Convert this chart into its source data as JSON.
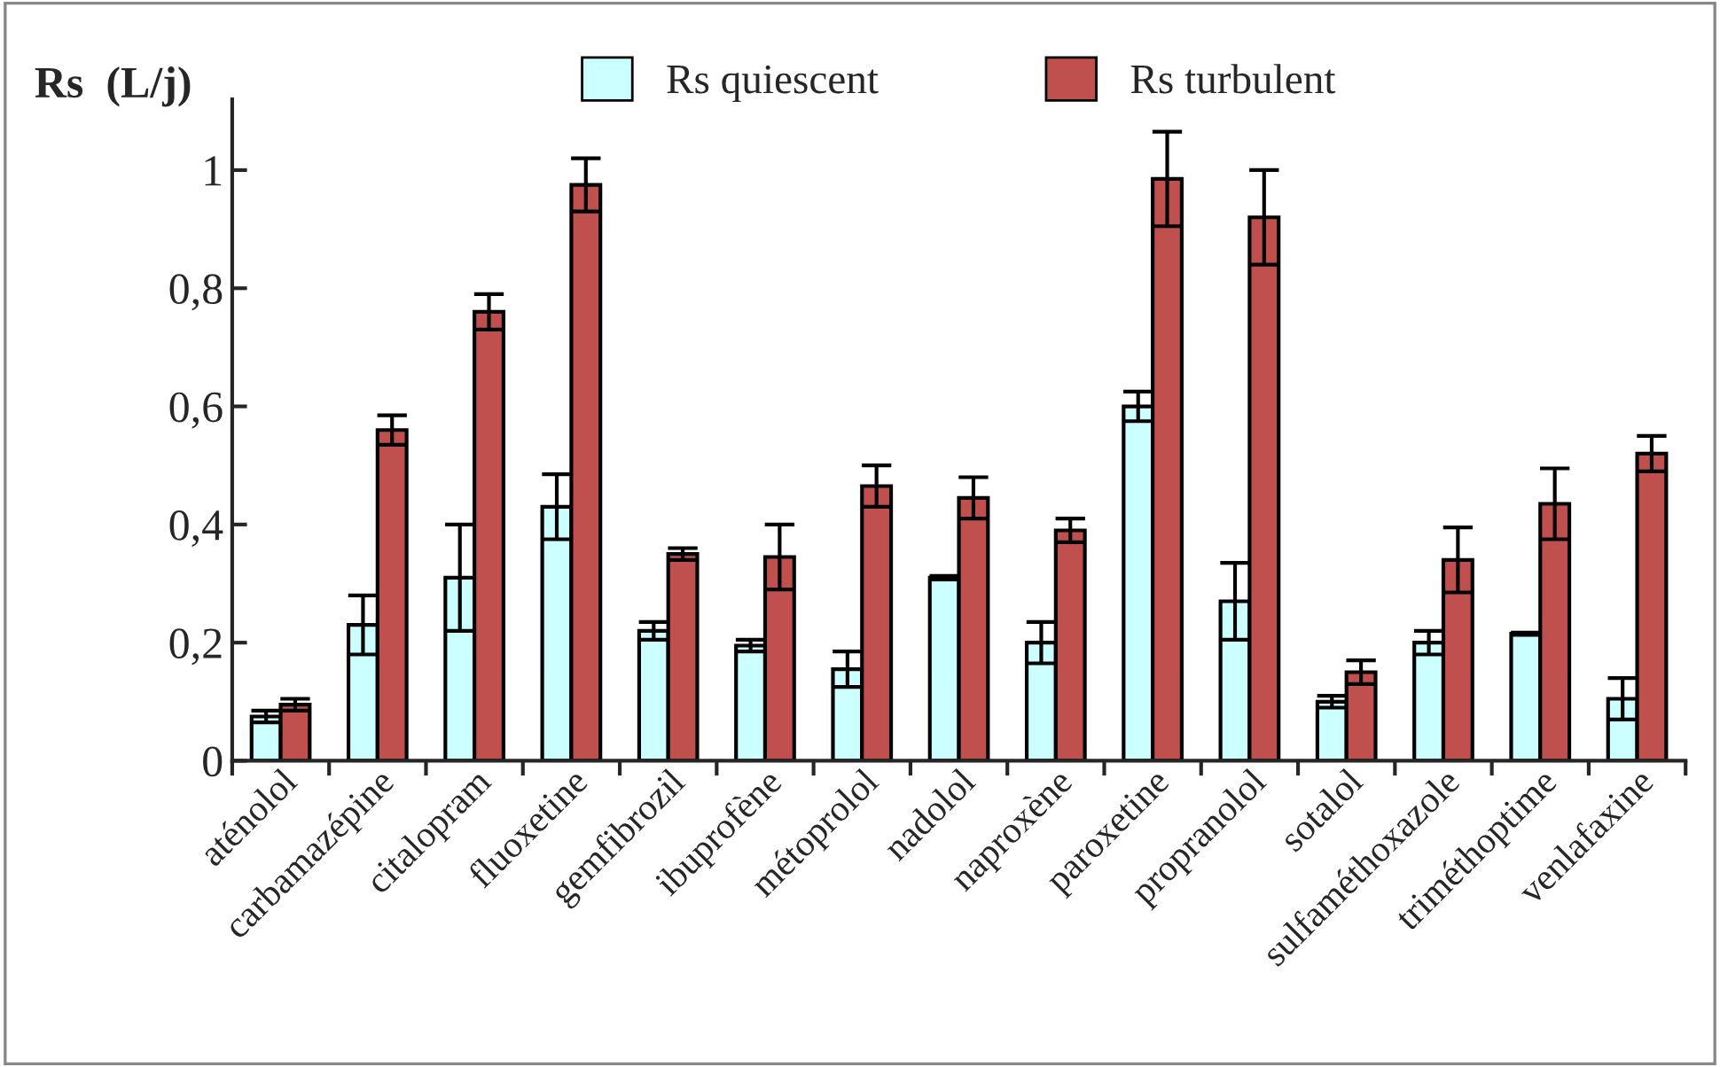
{
  "chart_data": {
    "type": "bar",
    "ylabel": "Rs  (L/j)",
    "categories": [
      "aténolol",
      "carbamazépine",
      "citalopram",
      "fluoxetine",
      "gemfibrozil",
      "ibuprofène",
      "métoprolol",
      "nadolol",
      "naproxène",
      "paroxetine",
      "propranolol",
      "sotalol",
      "sulfaméthoxazole",
      "triméthoptime",
      "venlafaxine"
    ],
    "series": [
      {
        "name": "Rs quiescent",
        "color": "#ccffff",
        "values": [
          0.075,
          0.23,
          0.31,
          0.43,
          0.22,
          0.195,
          0.155,
          0.31,
          0.2,
          0.6,
          0.27,
          0.1,
          0.2,
          0.215,
          0.105
        ],
        "errors": [
          0.01,
          0.05,
          0.09,
          0.055,
          0.015,
          0.01,
          0.03,
          0.003,
          0.035,
          0.025,
          0.065,
          0.01,
          0.02,
          0.002,
          0.035
        ]
      },
      {
        "name": "Rs turbulent",
        "color": "#c0504d",
        "values": [
          0.095,
          0.56,
          0.76,
          0.975,
          0.35,
          0.345,
          0.465,
          0.445,
          0.39,
          0.985,
          0.92,
          0.15,
          0.34,
          0.435,
          0.52
        ],
        "errors": [
          0.01,
          0.025,
          0.03,
          0.045,
          0.01,
          0.055,
          0.035,
          0.035,
          0.02,
          0.08,
          0.08,
          0.02,
          0.055,
          0.06,
          0.03
        ]
      }
    ],
    "ylim": [
      0,
      1.12
    ],
    "yticks": [
      0,
      {
        "value": 0.2,
        "label": "0,2"
      },
      {
        "value": 0.4,
        "label": "0,4"
      },
      {
        "value": 0.6,
        "label": "0,6"
      },
      {
        "value": 0.8,
        "label": "0,8"
      },
      1
    ],
    "grid": false,
    "legend": "top"
  }
}
